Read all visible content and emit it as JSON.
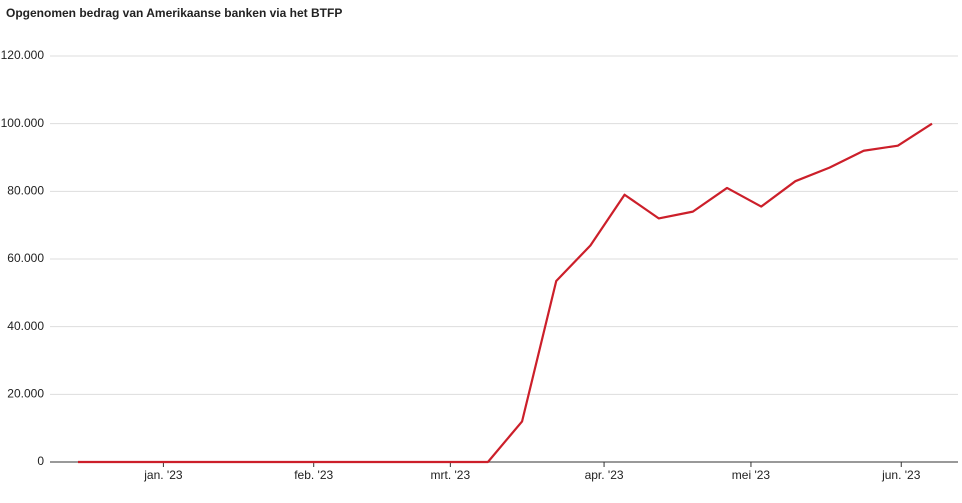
{
  "chart_data": {
    "type": "line",
    "title": "Opgenomen bedrag van Amerikaanse banken via het BTFP",
    "categories": [
      null,
      null,
      null,
      null,
      null,
      null,
      null,
      null,
      null,
      null,
      null,
      null,
      null,
      null,
      null,
      null,
      null,
      null,
      null,
      null,
      null,
      null,
      null,
      null,
      null,
      null
    ],
    "values": [
      0,
      0,
      0,
      0,
      0,
      0,
      0,
      0,
      0,
      0,
      0,
      0,
      0,
      12000,
      53500,
      64000,
      79000,
      72000,
      74000,
      81000,
      75500,
      83000,
      87000,
      92000,
      93500,
      100000
    ],
    "color": "#cc1f2a",
    "xticks": [
      {
        "value": 2.5,
        "label": "jan. '23"
      },
      {
        "value": 6.9,
        "label": "feb. '23"
      },
      {
        "value": 10.9,
        "label": "mrt. '23"
      },
      {
        "value": 15.4,
        "label": "apr. '23"
      },
      {
        "value": 19.7,
        "label": "mei '23"
      },
      {
        "value": 24.1,
        "label": "jun. '23"
      }
    ],
    "ylim": [
      0,
      120000
    ],
    "yticks": [
      0,
      {
        "value": 20000,
        "label": "20.000"
      },
      {
        "value": 40000,
        "label": "40.000"
      },
      {
        "value": 60000,
        "label": "60.000"
      },
      {
        "value": 80000,
        "label": "80.000"
      },
      {
        "value": 100000,
        "label": "100.000"
      },
      {
        "value": 120000,
        "label": "120.000"
      }
    ],
    "grid": true
  }
}
